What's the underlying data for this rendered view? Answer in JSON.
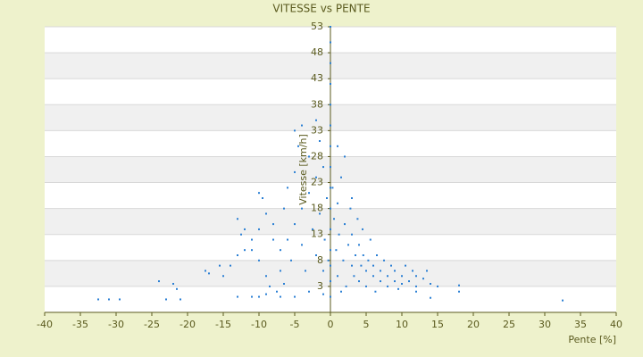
{
  "chart_data": {
    "type": "scatter",
    "title": "VITESSE vs PENTE",
    "x_label": "Pente [%]",
    "y_label": "Vitesse [km/h]",
    "xlim": [
      -40,
      40
    ],
    "xticks": [
      -40,
      -35,
      -30,
      -25,
      -20,
      -15,
      -10,
      -5,
      0,
      5,
      10,
      15,
      20,
      25,
      30,
      35,
      40
    ],
    "ylim": [
      -2,
      53
    ],
    "yticks": [
      3,
      8,
      13,
      18,
      23,
      28,
      33,
      38,
      43,
      48,
      53
    ],
    "grid": true,
    "series": [
      {
        "color": "#2a7fd4",
        "x": [
          -32.5,
          -31,
          -29.5,
          -23,
          -21,
          -13,
          -11,
          -10,
          -9,
          -7.5,
          -7,
          -5,
          -3,
          -1,
          18,
          32.5,
          14,
          18,
          12,
          1.5,
          -24,
          -22,
          -21.5,
          -17.5,
          -17,
          -15,
          -14,
          -13,
          -12,
          -12.5,
          -12,
          -11,
          -10,
          -10,
          -10,
          -9,
          -9,
          -8,
          -8,
          -7,
          -7,
          -6.5,
          -6,
          -6,
          -5.5,
          -5,
          -5,
          -5,
          -4.5,
          -4,
          -4,
          -3.5,
          -3,
          -3,
          -2.5,
          -2,
          -2,
          -1.5,
          -1.5,
          -1,
          -1,
          -0.8,
          -0.5,
          -0.3,
          0.3,
          0.5,
          0.8,
          1,
          1,
          1.2,
          1.5,
          1.8,
          2,
          2.2,
          2.5,
          2.8,
          3,
          3,
          3.3,
          3.5,
          3.8,
          4,
          4,
          4.3,
          4.6,
          5,
          5,
          5.3,
          5.6,
          6,
          6,
          6.3,
          6.5,
          7,
          7,
          7.5,
          8,
          8,
          8.5,
          9,
          9,
          9.5,
          10,
          10,
          10.5,
          11,
          11.5,
          12,
          12,
          13,
          13.5,
          14,
          15,
          -13,
          -11,
          -15.5,
          -9.5,
          -8.5,
          -6.5,
          4.5,
          3,
          2,
          -2,
          -4,
          1,
          0,
          0,
          0,
          0,
          0,
          0,
          0,
          0,
          0,
          0,
          0,
          0,
          0,
          0,
          0
        ],
        "values": [
          0.5,
          0.5,
          0.5,
          0.5,
          0.5,
          1,
          1,
          1,
          1.5,
          2,
          1,
          1,
          2,
          1.5,
          2,
          0.3,
          0.8,
          3.2,
          2,
          2,
          4,
          3.5,
          2.5,
          6,
          5.5,
          5,
          7,
          9,
          10,
          13,
          14,
          10,
          8,
          14,
          21,
          5,
          17,
          12,
          15,
          6,
          10,
          18,
          12,
          22,
          8,
          15,
          25,
          33,
          30,
          11,
          18,
          6,
          28,
          21,
          14,
          9,
          24,
          31,
          17,
          6,
          26,
          12,
          20,
          8,
          22,
          16,
          10,
          19,
          5,
          13,
          24,
          8,
          15,
          3,
          11,
          18,
          7,
          13,
          5,
          9,
          16,
          4,
          11,
          7,
          9,
          3,
          6,
          8,
          12,
          5,
          7,
          2,
          9,
          4,
          6,
          8,
          3,
          5,
          7,
          4,
          6,
          2.5,
          5,
          3.5,
          7,
          4,
          6,
          3,
          5,
          4.5,
          6,
          3.5,
          3,
          16,
          12,
          7,
          20,
          3,
          3.5,
          14,
          20,
          28,
          35,
          34,
          30,
          1,
          4,
          7,
          10,
          14,
          18,
          22,
          26,
          30,
          34,
          38,
          42,
          46,
          50,
          53
        ]
      }
    ]
  }
}
